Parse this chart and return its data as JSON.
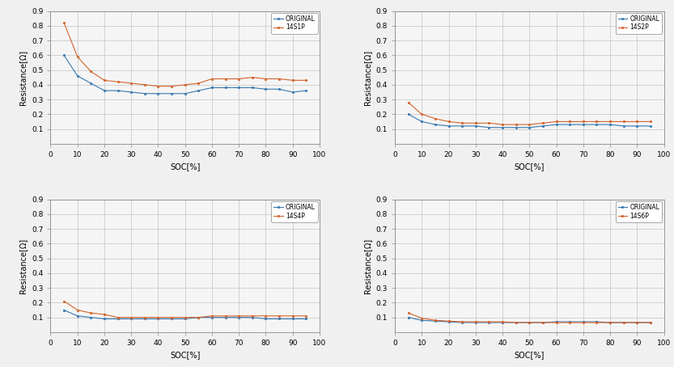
{
  "soc": [
    5,
    10,
    15,
    20,
    25,
    30,
    35,
    40,
    45,
    50,
    55,
    60,
    65,
    70,
    75,
    80,
    85,
    90,
    95
  ],
  "subplots": [
    {
      "legend_label": "14S1P",
      "original": [
        0.6,
        0.46,
        0.41,
        0.36,
        0.36,
        0.35,
        0.34,
        0.34,
        0.34,
        0.34,
        0.36,
        0.38,
        0.38,
        0.38,
        0.38,
        0.37,
        0.37,
        0.35,
        0.36
      ],
      "parallel": [
        0.82,
        0.59,
        0.49,
        0.43,
        0.42,
        0.41,
        0.4,
        0.39,
        0.39,
        0.4,
        0.41,
        0.44,
        0.44,
        0.44,
        0.45,
        0.44,
        0.44,
        0.43,
        0.43
      ]
    },
    {
      "legend_label": "14S2P",
      "original": [
        0.2,
        0.15,
        0.13,
        0.12,
        0.12,
        0.12,
        0.11,
        0.11,
        0.11,
        0.11,
        0.12,
        0.13,
        0.13,
        0.13,
        0.13,
        0.13,
        0.12,
        0.12,
        0.12
      ],
      "parallel": [
        0.28,
        0.2,
        0.17,
        0.15,
        0.14,
        0.14,
        0.14,
        0.13,
        0.13,
        0.13,
        0.14,
        0.15,
        0.15,
        0.15,
        0.15,
        0.15,
        0.15,
        0.15,
        0.15
      ]
    },
    {
      "legend_label": "14S4P",
      "original": [
        0.15,
        0.11,
        0.1,
        0.09,
        0.09,
        0.09,
        0.09,
        0.09,
        0.09,
        0.09,
        0.1,
        0.1,
        0.1,
        0.1,
        0.1,
        0.09,
        0.09,
        0.09,
        0.09
      ],
      "parallel": [
        0.21,
        0.15,
        0.13,
        0.12,
        0.1,
        0.1,
        0.1,
        0.1,
        0.1,
        0.1,
        0.1,
        0.11,
        0.11,
        0.11,
        0.11,
        0.11,
        0.11,
        0.11,
        0.11
      ]
    },
    {
      "legend_label": "14S6P",
      "original": [
        0.1,
        0.08,
        0.075,
        0.07,
        0.065,
        0.065,
        0.065,
        0.065,
        0.065,
        0.065,
        0.065,
        0.07,
        0.07,
        0.07,
        0.07,
        0.065,
        0.065,
        0.065,
        0.065
      ],
      "parallel": [
        0.13,
        0.095,
        0.08,
        0.075,
        0.07,
        0.07,
        0.07,
        0.07,
        0.065,
        0.065,
        0.065,
        0.065,
        0.065,
        0.065,
        0.065,
        0.065,
        0.065,
        0.065,
        0.065
      ]
    }
  ],
  "ylim": [
    0,
    0.9
  ],
  "yticks": [
    0.1,
    0.2,
    0.3,
    0.4,
    0.5,
    0.6,
    0.7,
    0.8,
    0.9
  ],
  "xticks": [
    0,
    10,
    20,
    30,
    40,
    50,
    60,
    70,
    80,
    90,
    100
  ],
  "xlabel": "SOC[%]",
  "ylabel": "Resistance[Ω]",
  "color_original": "#3777b0",
  "color_parallel": "#d4622a",
  "legend_original": "ORIGINAL",
  "fig_bg_color": "#f0f0f0",
  "ax_bg_color": "#f5f5f5",
  "grid_color": "#cccccc",
  "spine_color": "#888888"
}
